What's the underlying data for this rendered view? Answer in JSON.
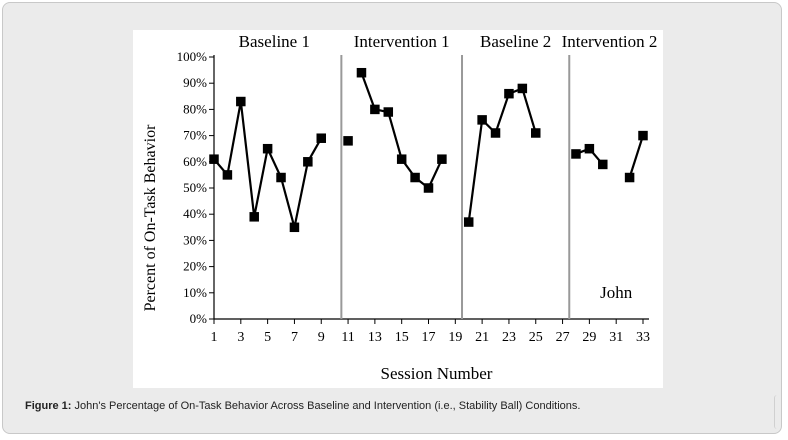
{
  "caption": {
    "label": "Figure 1:",
    "text": " John's Percentage of On-Task Behavior Across Baseline and Intervention (i.e., Stability Ball) Conditions."
  },
  "chart_data": {
    "type": "line",
    "title": "",
    "xlabel": "Session Number",
    "ylabel": "Percent of On-Task Behavior",
    "xlim": [
      1,
      33
    ],
    "ylim": [
      0,
      100
    ],
    "y_ticks": [
      "0%",
      "10%",
      "20%",
      "30%",
      "40%",
      "50%",
      "60%",
      "70%",
      "80%",
      "90%",
      "100%"
    ],
    "x_ticks": [
      1,
      3,
      5,
      7,
      9,
      11,
      13,
      15,
      17,
      19,
      21,
      23,
      25,
      27,
      29,
      31,
      33
    ],
    "grid": false,
    "annotation": "John",
    "phase_lines": [
      10.5,
      19.5,
      27.5
    ],
    "phases": [
      {
        "label": "Baseline 1",
        "x_center": 5.5
      },
      {
        "label": "Intervention 1",
        "x_center": 15
      },
      {
        "label": "Baseline 2",
        "x_center": 23.5
      },
      {
        "label": "Intervention 2",
        "x_center": 30.5
      }
    ],
    "segments": [
      {
        "x": [
          1,
          2,
          3,
          4,
          5,
          6,
          7,
          8,
          9
        ],
        "y": [
          61,
          55,
          83,
          39,
          65,
          54,
          35,
          60,
          69
        ]
      },
      {
        "x": [
          11
        ],
        "y": [
          68
        ]
      },
      {
        "x": [
          12,
          13,
          14,
          15,
          16,
          17,
          18
        ],
        "y": [
          94,
          80,
          79,
          61,
          54,
          50,
          61
        ]
      },
      {
        "x": [
          20,
          21,
          22,
          23,
          24,
          25
        ],
        "y": [
          37,
          76,
          71,
          86,
          88,
          71
        ]
      },
      {
        "x": [
          28,
          29,
          30
        ],
        "y": [
          63,
          65,
          59
        ]
      },
      {
        "x": [
          32,
          33
        ],
        "y": [
          54,
          70
        ]
      }
    ],
    "colors": {
      "marker": "#000000",
      "phase_line": "#999999"
    }
  }
}
